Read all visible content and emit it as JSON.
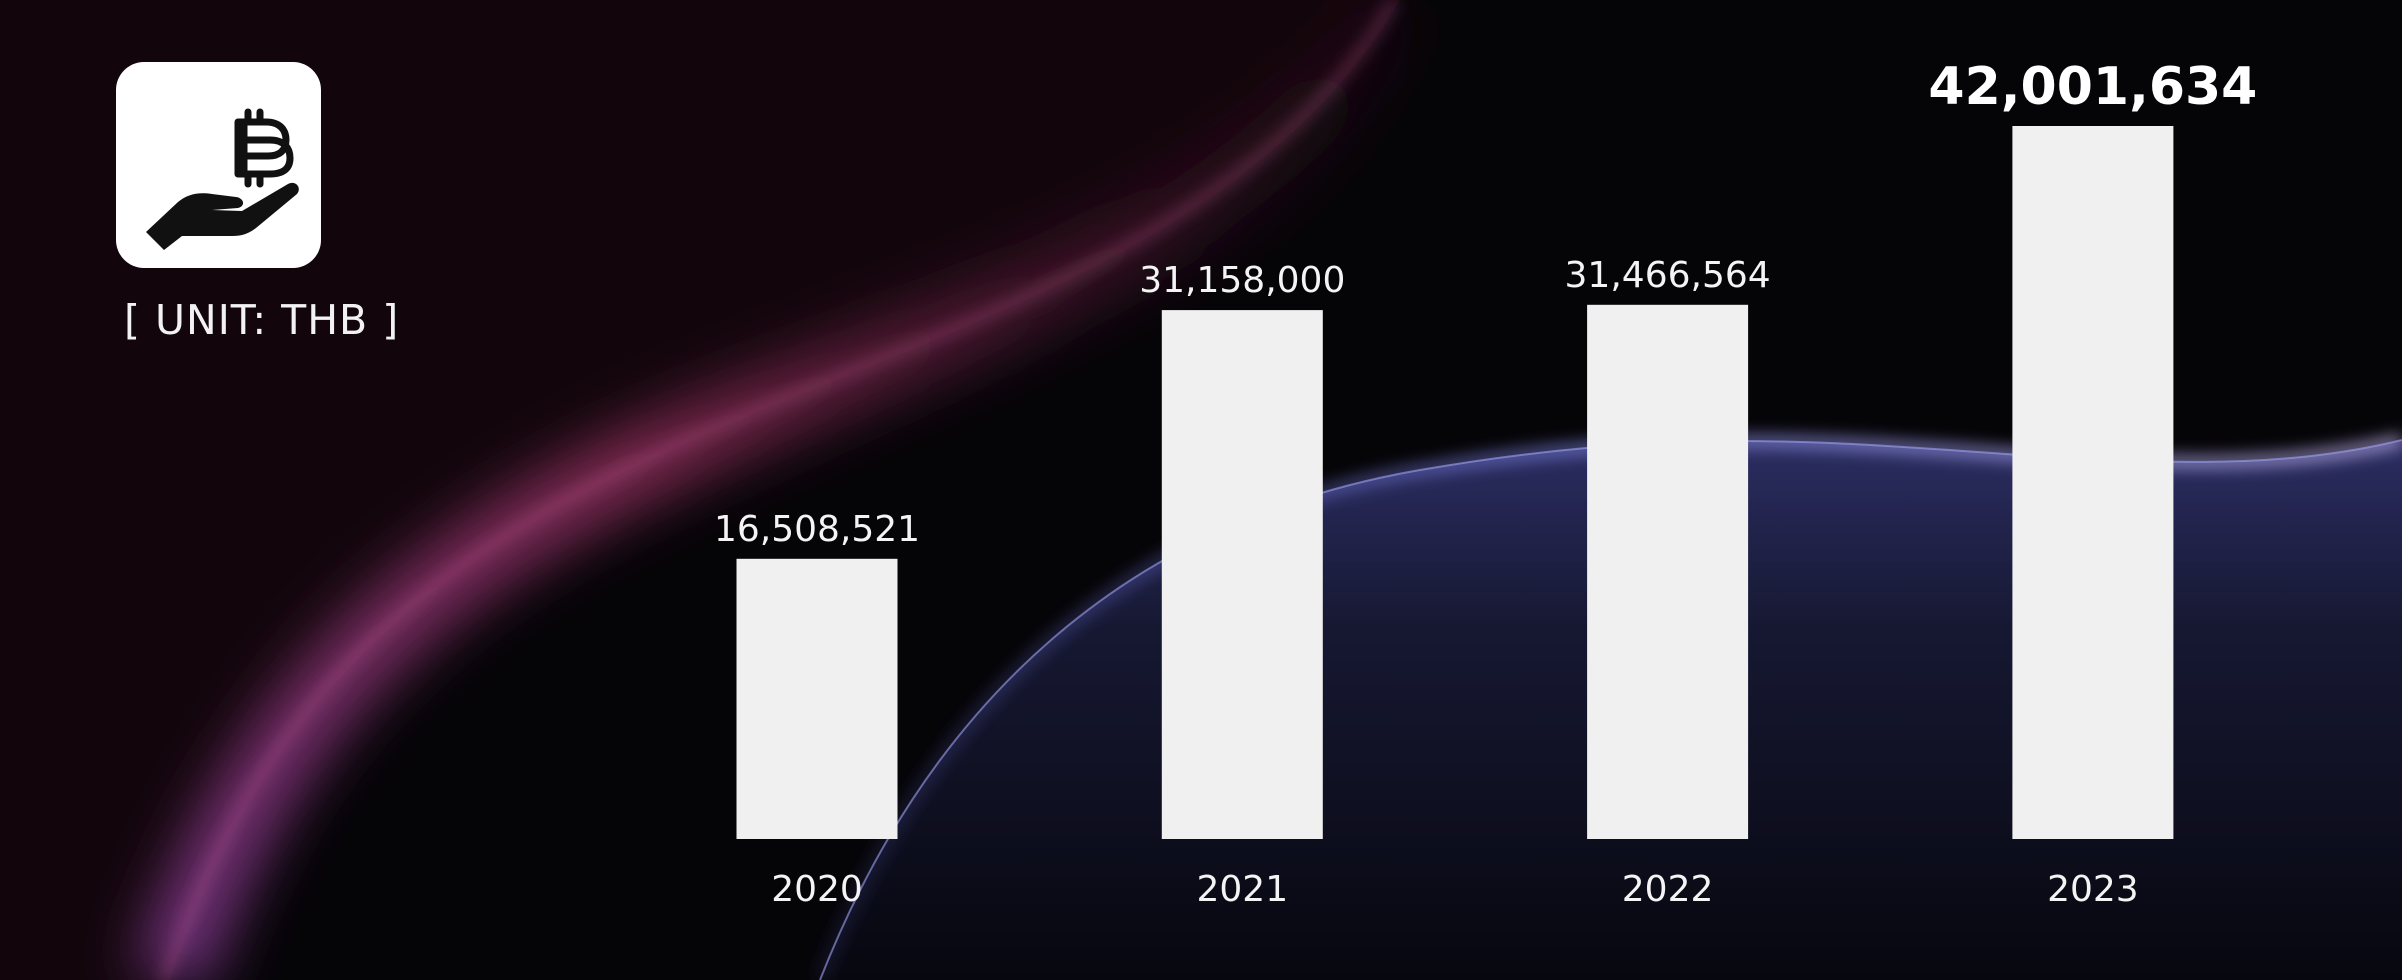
{
  "unit_label": "[ UNIT: THB ]",
  "logo": {
    "icon": "bitcoin-hand-icon"
  },
  "colors": {
    "background": "#050407",
    "bar": "#f0f0f0",
    "text": "#f4f4f4",
    "pink_glow": "#c0437e",
    "blue_glow": "#4b4fa8"
  },
  "chart_data": {
    "type": "bar",
    "categories": [
      "2020",
      "2021",
      "2022",
      "2023"
    ],
    "values": [
      16508521,
      31158000,
      31466564,
      42001634
    ],
    "value_labels": [
      "16,508,521",
      "31,158,000",
      "31,466,564",
      "42,001,634"
    ],
    "highlight_index": 3,
    "title": "",
    "xlabel": "",
    "ylabel": "",
    "ylim": [
      0,
      42001634
    ],
    "grid": false,
    "legend": "none"
  }
}
